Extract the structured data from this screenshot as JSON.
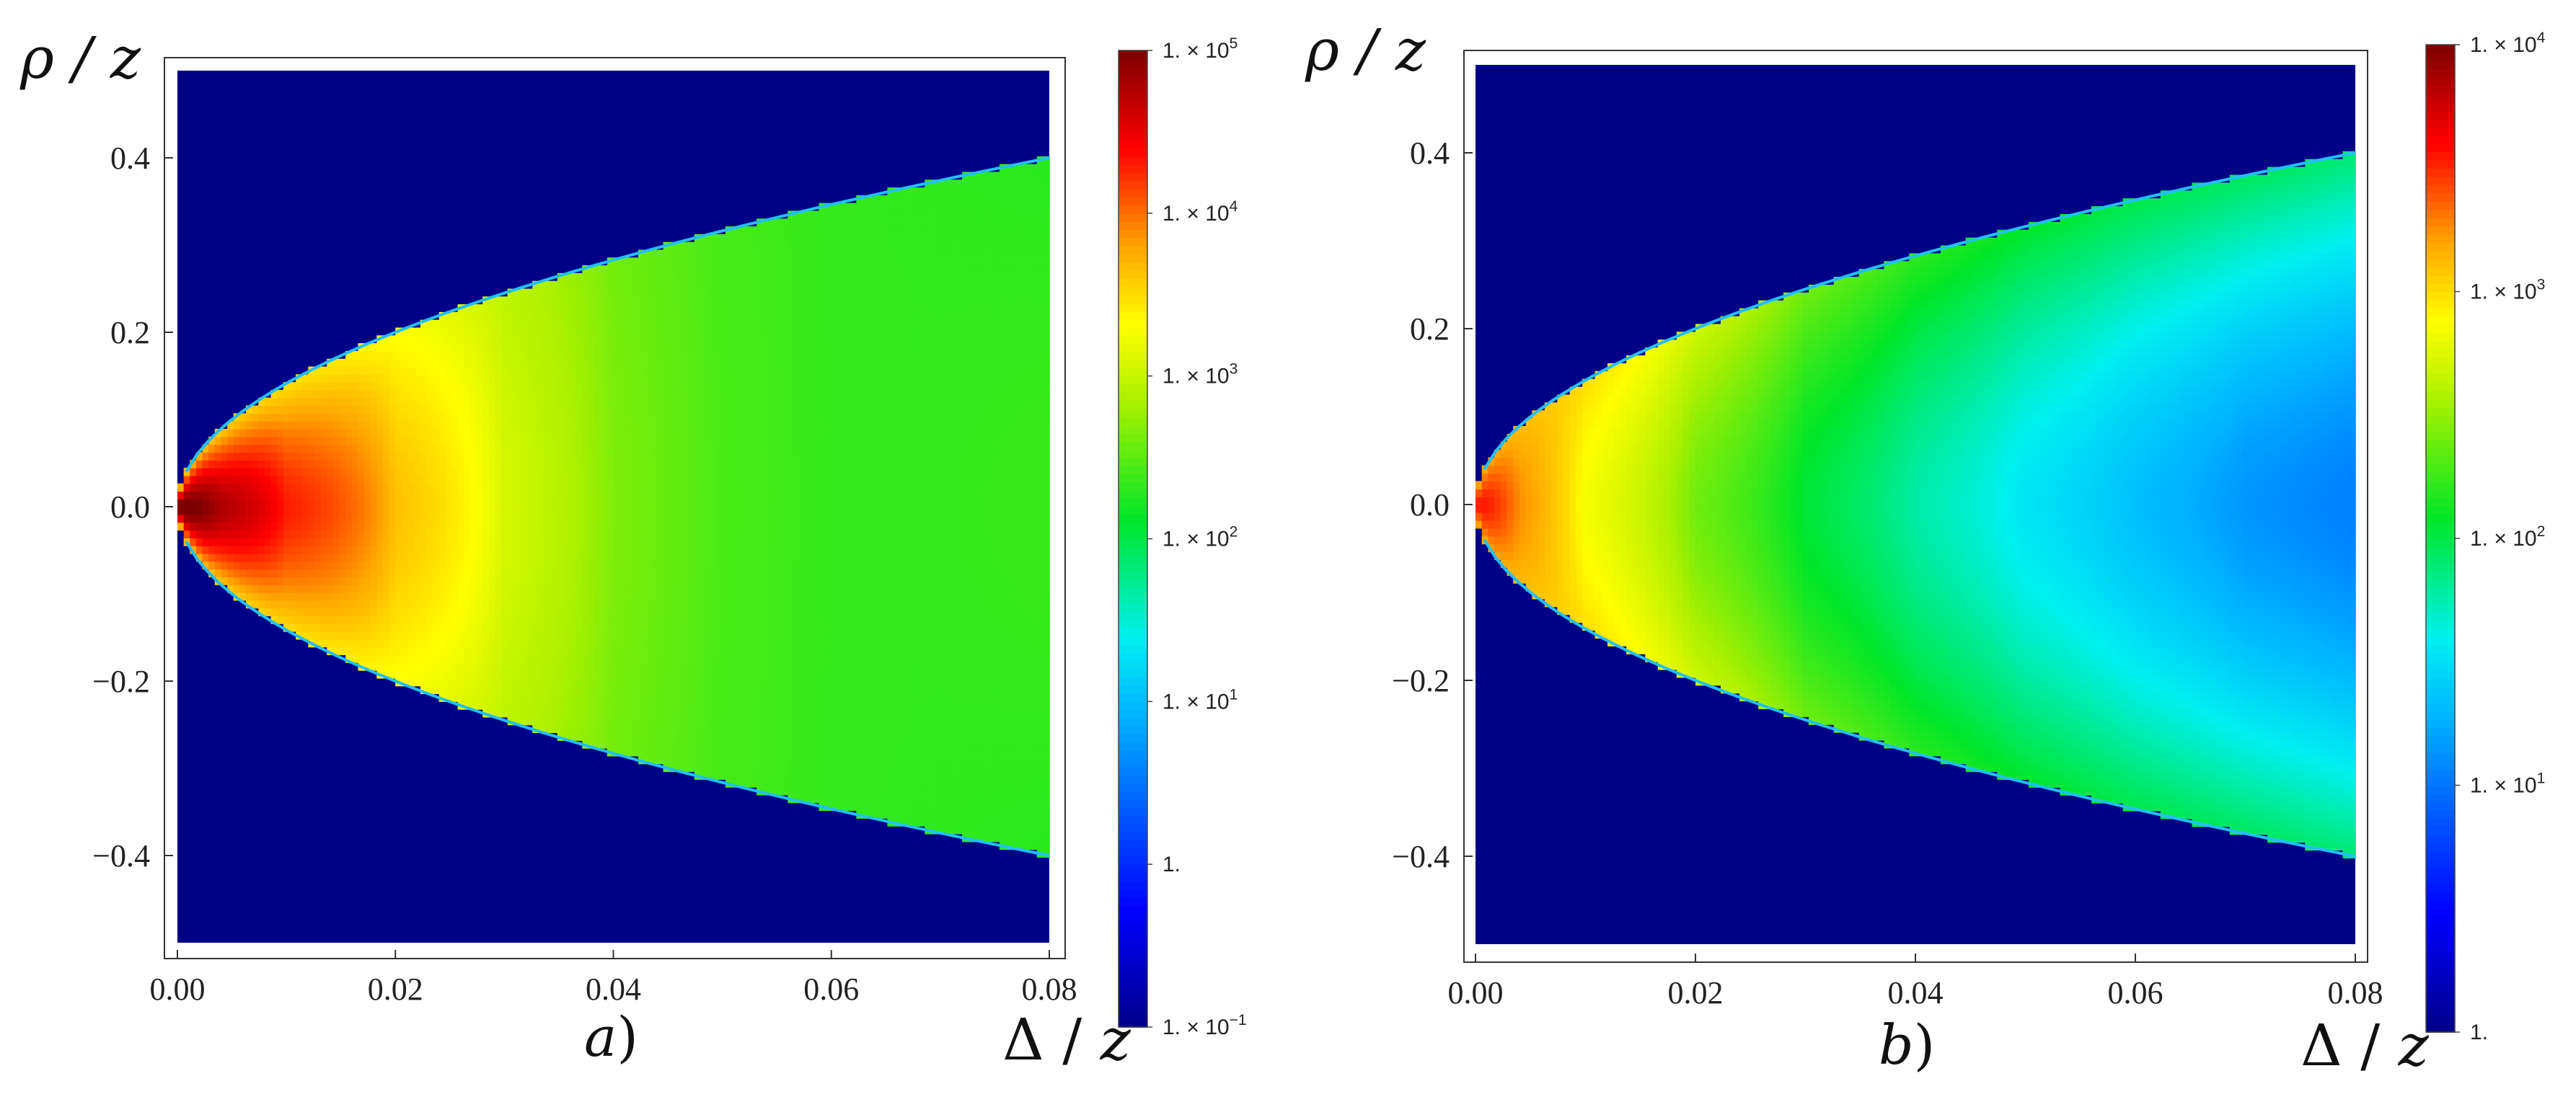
{
  "chart_data": [
    {
      "type": "heatmap",
      "panel_label": "a",
      "xlabel": "Δ / z",
      "ylabel": "ρ / z",
      "xlim": [
        0.0,
        0.08
      ],
      "ylim": [
        -0.5,
        0.5
      ],
      "x_ticks": [
        "0.00",
        "0.02",
        "0.04",
        "0.06",
        "0.08"
      ],
      "y_ticks": [
        "0.4",
        "0.2",
        "0.0",
        "−0.2",
        "−0.4"
      ],
      "colorscale": "log",
      "colorbar_range": [
        0.1,
        100000
      ],
      "colorbar_ticks": [
        {
          "value": 100000,
          "mant": "1. × 10",
          "exp": "5"
        },
        {
          "value": 10000,
          "mant": "1. × 10",
          "exp": "4"
        },
        {
          "value": 1000,
          "mant": "1. × 10",
          "exp": "3"
        },
        {
          "value": 100,
          "mant": "1. × 10",
          "exp": "2"
        },
        {
          "value": 10,
          "mant": "1. × 10",
          "exp": "1"
        },
        {
          "value": 1,
          "mant": "1.",
          "exp": ""
        },
        {
          "value": 0.1,
          "mant": "1. × 10",
          "exp": "−1"
        }
      ],
      "boundary": "rho = ±sqrt(2·Δ)",
      "value_profile": {
        "x": [
          0.001,
          0.004,
          0.01,
          0.02,
          0.03,
          0.04,
          0.05,
          0.06,
          0.07,
          0.08
        ],
        "axis_values": [
          120000,
          60000,
          20000,
          4500,
          1200,
          450,
          270,
          220,
          220,
          230
        ],
        "edge_values": [
          4000,
          3500,
          3000,
          2000,
          900,
          400,
          260,
          220,
          210,
          200
        ]
      },
      "outside_value": 0.1
    },
    {
      "type": "heatmap",
      "panel_label": "b",
      "xlabel": "Δ / z",
      "ylabel": "ρ / z",
      "xlim": [
        0.0,
        0.08
      ],
      "ylim": [
        -0.5,
        0.5
      ],
      "x_ticks": [
        "0.00",
        "0.02",
        "0.04",
        "0.06",
        "0.08"
      ],
      "y_ticks": [
        "0.4",
        "0.2",
        "0.0",
        "−0.2",
        "−0.4"
      ],
      "colorscale": "log",
      "colorbar_range": [
        1,
        10000
      ],
      "colorbar_ticks": [
        {
          "value": 10000,
          "mant": "1. × 10",
          "exp": "4"
        },
        {
          "value": 1000,
          "mant": "1. × 10",
          "exp": "3"
        },
        {
          "value": 100,
          "mant": "1. × 10",
          "exp": "2"
        },
        {
          "value": 10,
          "mant": "1. × 10",
          "exp": "1"
        },
        {
          "value": 1,
          "mant": "1.",
          "exp": ""
        }
      ],
      "boundary": "rho = ±sqrt(2·Δ)",
      "value_profile": {
        "x": [
          0.001,
          0.004,
          0.01,
          0.02,
          0.03,
          0.04,
          0.05,
          0.06,
          0.07,
          0.08
        ],
        "axis_values": [
          3500,
          1800,
          700,
          250,
          110,
          60,
          35,
          22,
          14,
          11
        ],
        "edge_values": [
          1500,
          1300,
          1000,
          500,
          250,
          160,
          120,
          100,
          90,
          80
        ]
      },
      "outside_value": 1
    }
  ]
}
